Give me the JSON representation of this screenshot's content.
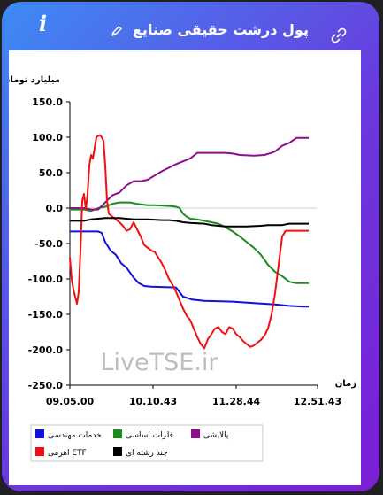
{
  "header": {
    "title": "پول درشت حقیقی صنایع",
    "info_icon": "info-icon",
    "edit_icon": "pencil-icon",
    "link_icon": "link-icon"
  },
  "watermark": "LiveTSE.ir",
  "chart_data": {
    "type": "line",
    "ylabel": "میلیارد تومان",
    "xlabel": "زمان",
    "ylim": [
      -250,
      150
    ],
    "yticks": [
      "150.0",
      "100.0",
      "50.0",
      "0.0",
      "-50.0",
      "-100.0",
      "-150.0",
      "-200.0",
      "-250.0"
    ],
    "xlim": [
      0,
      140
    ],
    "xticks": [
      {
        "label": "09.05.00",
        "t": 0
      },
      {
        "label": "10.10.43",
        "t": 47
      },
      {
        "label": "11.28.44",
        "t": 94
      },
      {
        "label": "12.51.43",
        "t": 140
      }
    ],
    "legend": [
      {
        "name": "خدمات مهندسی",
        "color": "#1010e0"
      },
      {
        "name": "فلزات اساسی",
        "color": "#1c8c1c"
      },
      {
        "name": "پالایشی",
        "color": "#8e0c8e"
      },
      {
        "name": "اهرمی ETF",
        "color": "#f01010"
      },
      {
        "name": "چند رشته ای",
        "color": "#000000"
      }
    ],
    "series": [
      {
        "name": "خدمات مهندسی",
        "color": "#1010e0",
        "points": [
          [
            0,
            -33
          ],
          [
            16,
            -33
          ],
          [
            18,
            -35
          ],
          [
            20,
            -48
          ],
          [
            23,
            -60
          ],
          [
            26,
            -66
          ],
          [
            29,
            -78
          ],
          [
            32,
            -84
          ],
          [
            36,
            -98
          ],
          [
            39,
            -106
          ],
          [
            42,
            -110
          ],
          [
            46,
            -111
          ],
          [
            60,
            -112
          ],
          [
            64,
            -125
          ],
          [
            69,
            -129
          ],
          [
            76,
            -131
          ],
          [
            92,
            -132
          ],
          [
            104,
            -134
          ],
          [
            116,
            -136
          ],
          [
            124,
            -138
          ],
          [
            132,
            -139
          ],
          [
            135,
            -139
          ]
        ]
      },
      {
        "name": "فلزات اساسی",
        "color": "#1c8c1c",
        "points": [
          [
            0,
            -2
          ],
          [
            8,
            -2
          ],
          [
            12,
            -4
          ],
          [
            16,
            0
          ],
          [
            20,
            2
          ],
          [
            24,
            6
          ],
          [
            28,
            8
          ],
          [
            34,
            8
          ],
          [
            38,
            6
          ],
          [
            44,
            4
          ],
          [
            48,
            4
          ],
          [
            56,
            3
          ],
          [
            60,
            2
          ],
          [
            62,
            0
          ],
          [
            64,
            -8
          ],
          [
            66,
            -12
          ],
          [
            68,
            -15
          ],
          [
            72,
            -16
          ],
          [
            76,
            -18
          ],
          [
            80,
            -20
          ],
          [
            84,
            -22
          ],
          [
            88,
            -27
          ],
          [
            92,
            -33
          ],
          [
            96,
            -40
          ],
          [
            100,
            -48
          ],
          [
            104,
            -56
          ],
          [
            108,
            -66
          ],
          [
            112,
            -80
          ],
          [
            116,
            -90
          ],
          [
            120,
            -96
          ],
          [
            124,
            -104
          ],
          [
            128,
            -106
          ],
          [
            135,
            -106
          ]
        ]
      },
      {
        "name": "پالایشی",
        "color": "#8e0c8e",
        "points": [
          [
            0,
            0
          ],
          [
            8,
            0
          ],
          [
            12,
            -2
          ],
          [
            16,
            -2
          ],
          [
            20,
            8
          ],
          [
            24,
            18
          ],
          [
            28,
            22
          ],
          [
            32,
            32
          ],
          [
            36,
            38
          ],
          [
            40,
            38
          ],
          [
            44,
            40
          ],
          [
            48,
            46
          ],
          [
            52,
            52
          ],
          [
            56,
            57
          ],
          [
            60,
            62
          ],
          [
            64,
            66
          ],
          [
            68,
            70
          ],
          [
            72,
            78
          ],
          [
            76,
            78
          ],
          [
            84,
            78
          ],
          [
            88,
            78
          ],
          [
            92,
            77
          ],
          [
            96,
            75
          ],
          [
            104,
            74
          ],
          [
            110,
            75
          ],
          [
            114,
            78
          ],
          [
            116,
            80
          ],
          [
            118,
            84
          ],
          [
            120,
            88
          ],
          [
            124,
            92
          ],
          [
            128,
            99
          ],
          [
            135,
            99
          ]
        ]
      },
      {
        "name": "اهرمی ETF",
        "color": "#f01010",
        "points": [
          [
            0,
            -70
          ],
          [
            1,
            -100
          ],
          [
            2,
            -115
          ],
          [
            3,
            -125
          ],
          [
            4,
            -135
          ],
          [
            5,
            -118
          ],
          [
            6,
            -60
          ],
          [
            7,
            10
          ],
          [
            8,
            20
          ],
          [
            9,
            -2
          ],
          [
            10,
            20
          ],
          [
            11,
            60
          ],
          [
            12,
            75
          ],
          [
            13,
            70
          ],
          [
            14,
            85
          ],
          [
            15,
            100
          ],
          [
            16,
            102
          ],
          [
            17,
            103
          ],
          [
            18,
            100
          ],
          [
            19,
            95
          ],
          [
            20,
            60
          ],
          [
            21,
            10
          ],
          [
            22,
            -8
          ],
          [
            24,
            -12
          ],
          [
            26,
            -16
          ],
          [
            28,
            -20
          ],
          [
            30,
            -25
          ],
          [
            32,
            -32
          ],
          [
            34,
            -30
          ],
          [
            36,
            -20
          ],
          [
            38,
            -30
          ],
          [
            40,
            -40
          ],
          [
            42,
            -52
          ],
          [
            44,
            -56
          ],
          [
            46,
            -60
          ],
          [
            48,
            -62
          ],
          [
            50,
            -70
          ],
          [
            52,
            -78
          ],
          [
            54,
            -88
          ],
          [
            56,
            -100
          ],
          [
            58,
            -108
          ],
          [
            60,
            -118
          ],
          [
            62,
            -130
          ],
          [
            64,
            -142
          ],
          [
            66,
            -152
          ],
          [
            68,
            -158
          ],
          [
            70,
            -170
          ],
          [
            72,
            -182
          ],
          [
            74,
            -192
          ],
          [
            76,
            -198
          ],
          [
            78,
            -185
          ],
          [
            80,
            -178
          ],
          [
            82,
            -170
          ],
          [
            84,
            -168
          ],
          [
            86,
            -175
          ],
          [
            88,
            -178
          ],
          [
            90,
            -168
          ],
          [
            92,
            -170
          ],
          [
            94,
            -178
          ],
          [
            96,
            -182
          ],
          [
            98,
            -188
          ],
          [
            100,
            -192
          ],
          [
            102,
            -196
          ],
          [
            104,
            -194
          ],
          [
            106,
            -190
          ],
          [
            108,
            -186
          ],
          [
            110,
            -180
          ],
          [
            112,
            -170
          ],
          [
            114,
            -150
          ],
          [
            116,
            -120
          ],
          [
            118,
            -80
          ],
          [
            120,
            -40
          ],
          [
            122,
            -32
          ],
          [
            135,
            -32
          ]
        ]
      },
      {
        "name": "چند رشته ای",
        "color": "#000000",
        "points": [
          [
            0,
            -18
          ],
          [
            8,
            -18
          ],
          [
            12,
            -16
          ],
          [
            16,
            -15
          ],
          [
            20,
            -14
          ],
          [
            24,
            -14
          ],
          [
            28,
            -14
          ],
          [
            32,
            -15
          ],
          [
            36,
            -16
          ],
          [
            44,
            -16
          ],
          [
            52,
            -17
          ],
          [
            56,
            -17
          ],
          [
            60,
            -18
          ],
          [
            64,
            -20
          ],
          [
            68,
            -21
          ],
          [
            76,
            -22
          ],
          [
            80,
            -24
          ],
          [
            84,
            -25
          ],
          [
            88,
            -26
          ],
          [
            92,
            -26
          ],
          [
            100,
            -26
          ],
          [
            108,
            -25
          ],
          [
            112,
            -24
          ],
          [
            116,
            -24
          ],
          [
            120,
            -24
          ],
          [
            124,
            -22
          ],
          [
            135,
            -22
          ]
        ]
      }
    ]
  }
}
